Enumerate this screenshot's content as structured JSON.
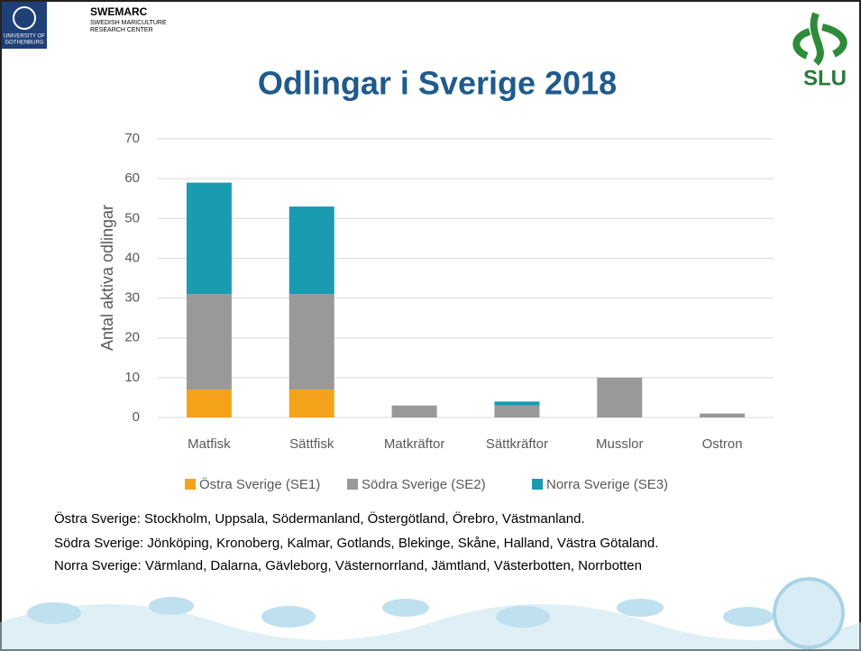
{
  "slide": {
    "university": [
      "UNIVERSITY OF",
      "GOTHENBURG"
    ],
    "center": [
      "SWEMARC",
      "SWEDISH MARICULTURE",
      "RESEARCH CENTER"
    ],
    "slu": "SLU",
    "notes": [
      "Östra Sverige: Stockholm, Uppsala, Södermanland, Östergötland, Örebro, Västmanland.",
      "Södra Sverige: Jönköping, Kronoberg, Kalmar, Gotlands, Blekinge, Skåne, Halland, Västra Götaland.",
      "Norra Sverige: Värmland, Dalarna, Gävleborg, Västernorrland, Jämtland, Västerbotten, Norrbotten"
    ]
  },
  "chart_data": {
    "type": "stacked_bar",
    "title": "Odlingar i Sverige 2018",
    "y_label": "Antal aktiva odlingar",
    "categories": [
      "Matfisk",
      "Sättfisk",
      "Matkräftor",
      "Sättkräftor",
      "Musslor",
      "Ostron"
    ],
    "series": [
      {
        "name": "Östra Sverige (SE1)",
        "color": "#f5a21b",
        "values": [
          7,
          7,
          0,
          0,
          0,
          0
        ]
      },
      {
        "name": "Södra Sverige (SE2)",
        "color": "#999999",
        "values": [
          24,
          24,
          3,
          3,
          10,
          1
        ]
      },
      {
        "name": "Norra Sverige (SE3)",
        "color": "#1a9bb0",
        "values": [
          28,
          22,
          0,
          1,
          0,
          0
        ]
      }
    ],
    "ylim": [
      0,
      70
    ],
    "yticks": [
      0,
      10,
      20,
      30,
      40,
      50,
      60,
      70
    ],
    "grid": true,
    "legend": "bottom"
  }
}
